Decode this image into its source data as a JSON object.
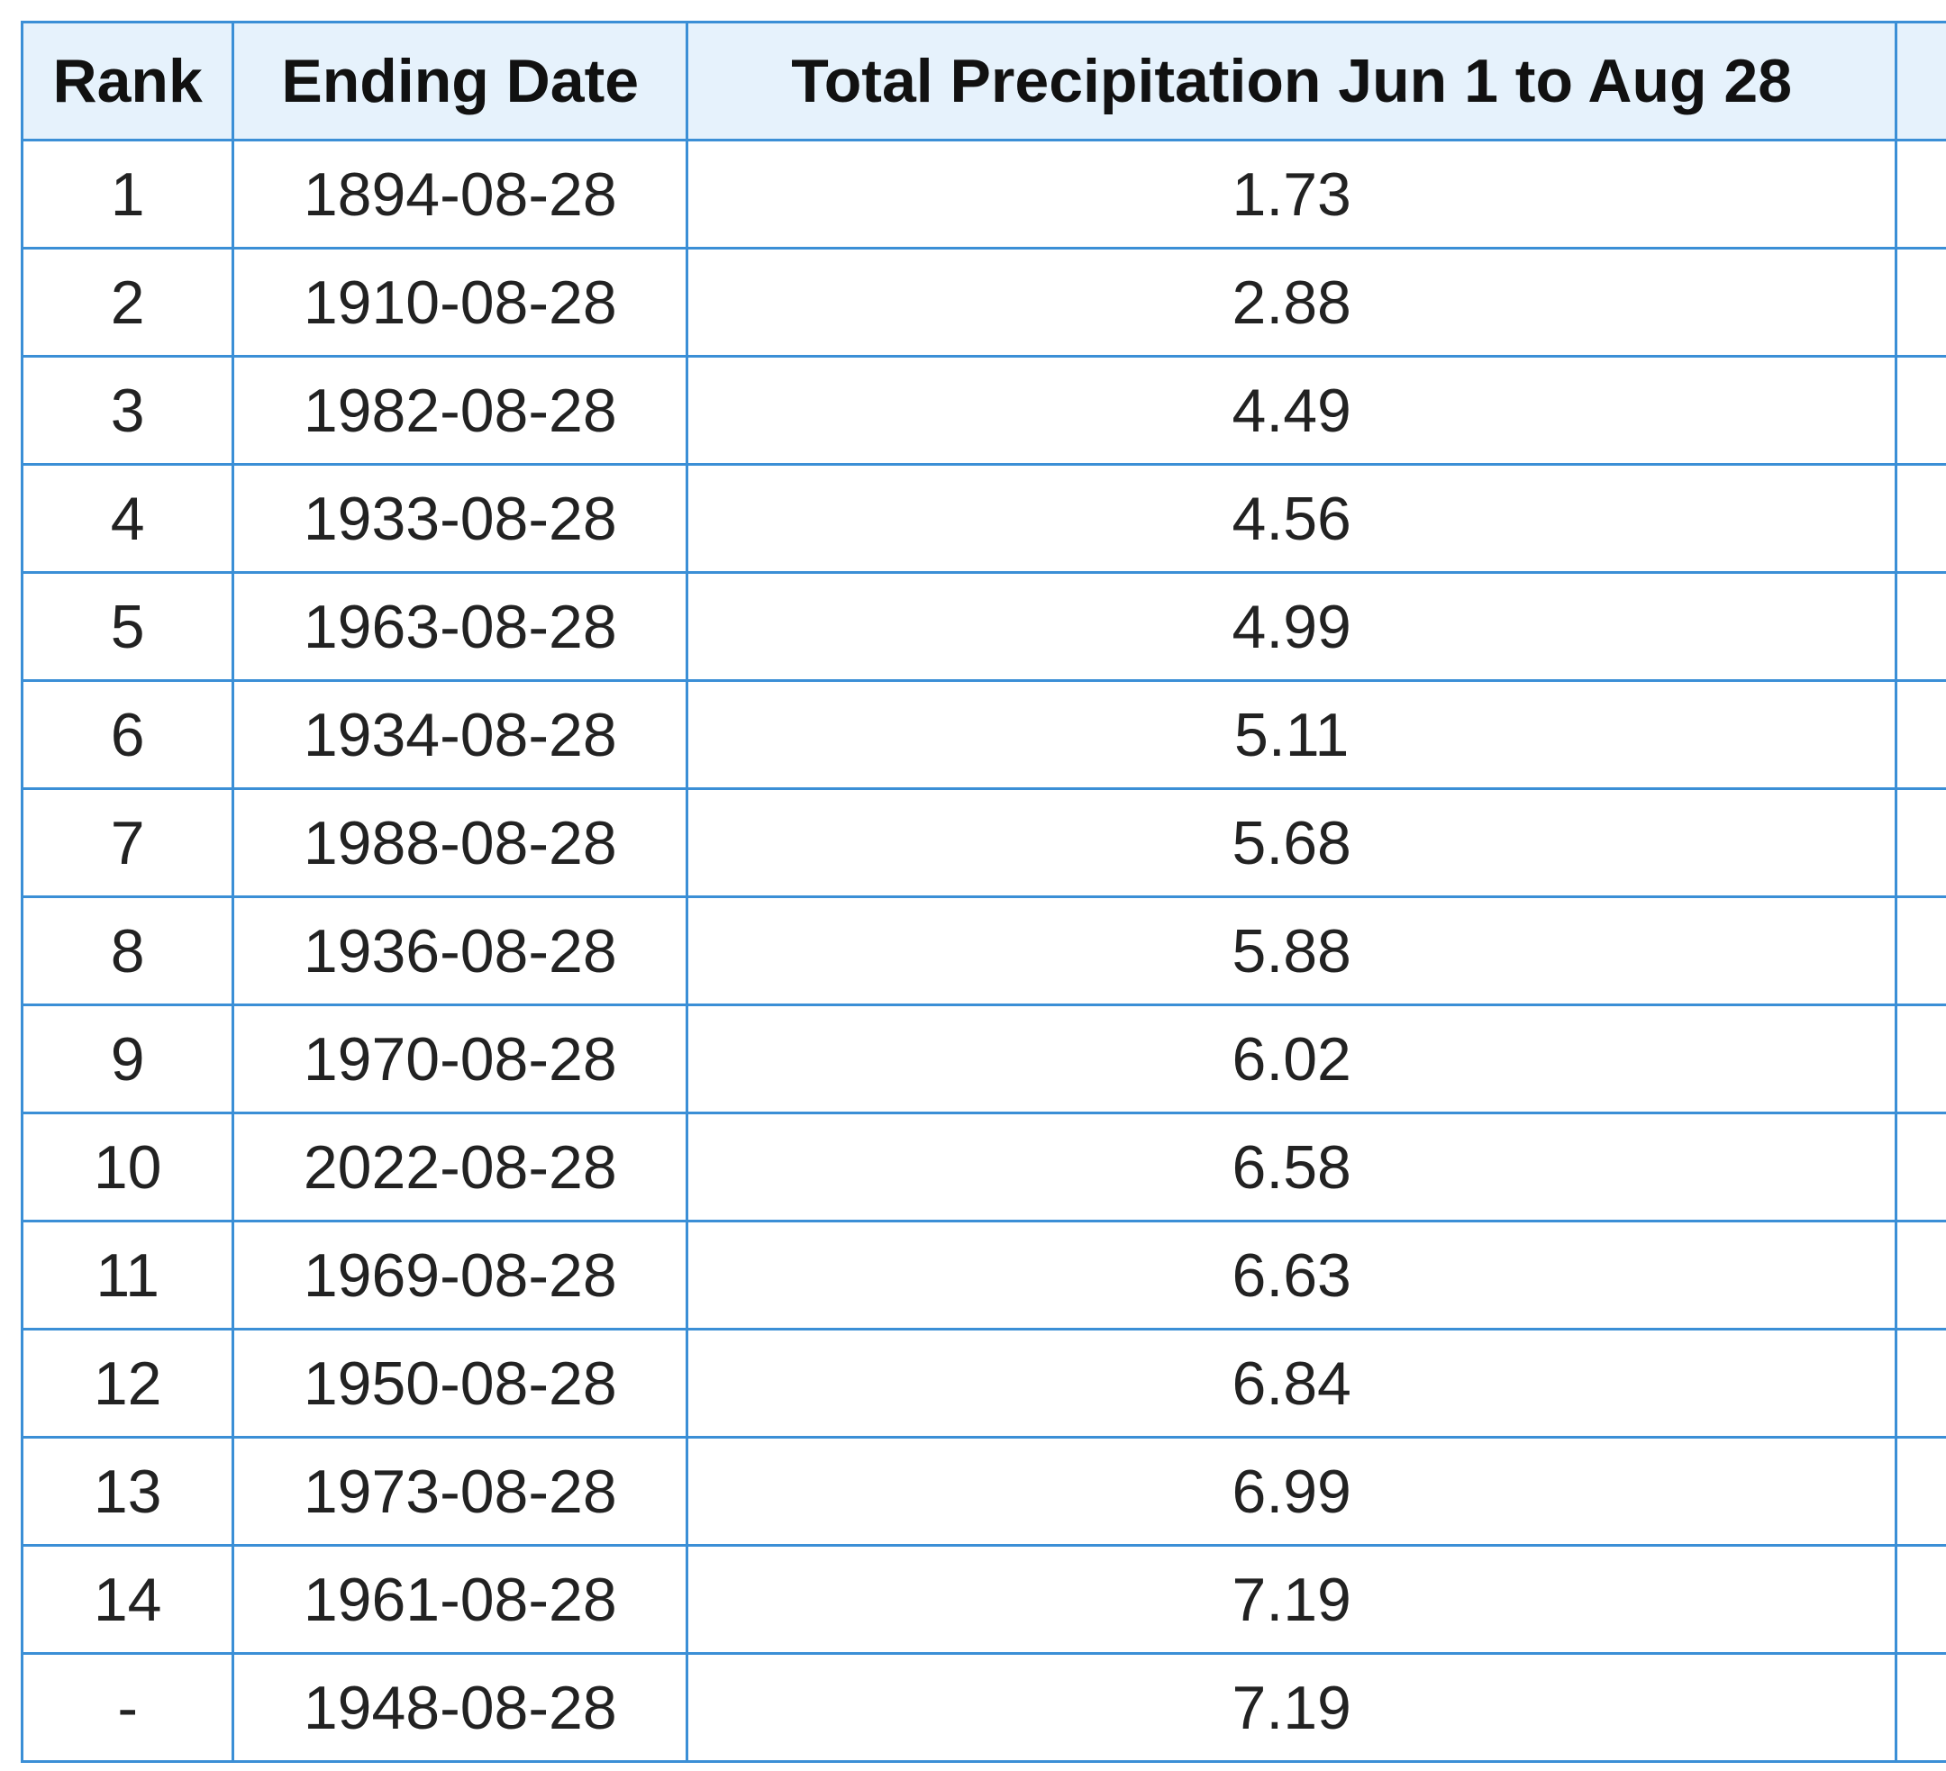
{
  "table": {
    "headers": {
      "rank": "Rank",
      "ending_date": "Ending Date",
      "total": "Total Precipitation Jun 1 to Aug 28"
    },
    "rows": [
      {
        "rank": "1",
        "date": "1894-08-28",
        "total": "1.73"
      },
      {
        "rank": "2",
        "date": "1910-08-28",
        "total": "2.88"
      },
      {
        "rank": "3",
        "date": "1982-08-28",
        "total": "4.49"
      },
      {
        "rank": "4",
        "date": "1933-08-28",
        "total": "4.56"
      },
      {
        "rank": "5",
        "date": "1963-08-28",
        "total": "4.99"
      },
      {
        "rank": "6",
        "date": "1934-08-28",
        "total": "5.11"
      },
      {
        "rank": "7",
        "date": "1988-08-28",
        "total": "5.68"
      },
      {
        "rank": "8",
        "date": "1936-08-28",
        "total": "5.88"
      },
      {
        "rank": "9",
        "date": "1970-08-28",
        "total": "6.02"
      },
      {
        "rank": "10",
        "date": "2022-08-28",
        "total": "6.58"
      },
      {
        "rank": "11",
        "date": "1969-08-28",
        "total": "6.63"
      },
      {
        "rank": "12",
        "date": "1950-08-28",
        "total": "6.84"
      },
      {
        "rank": "13",
        "date": "1973-08-28",
        "total": "6.99"
      },
      {
        "rank": "14",
        "date": "1961-08-28",
        "total": "7.19"
      },
      {
        "rank": "-",
        "date": "1948-08-28",
        "total": "7.19"
      }
    ]
  },
  "colors": {
    "border": "#3b8fd6",
    "header_background": "#e6f2fc"
  }
}
